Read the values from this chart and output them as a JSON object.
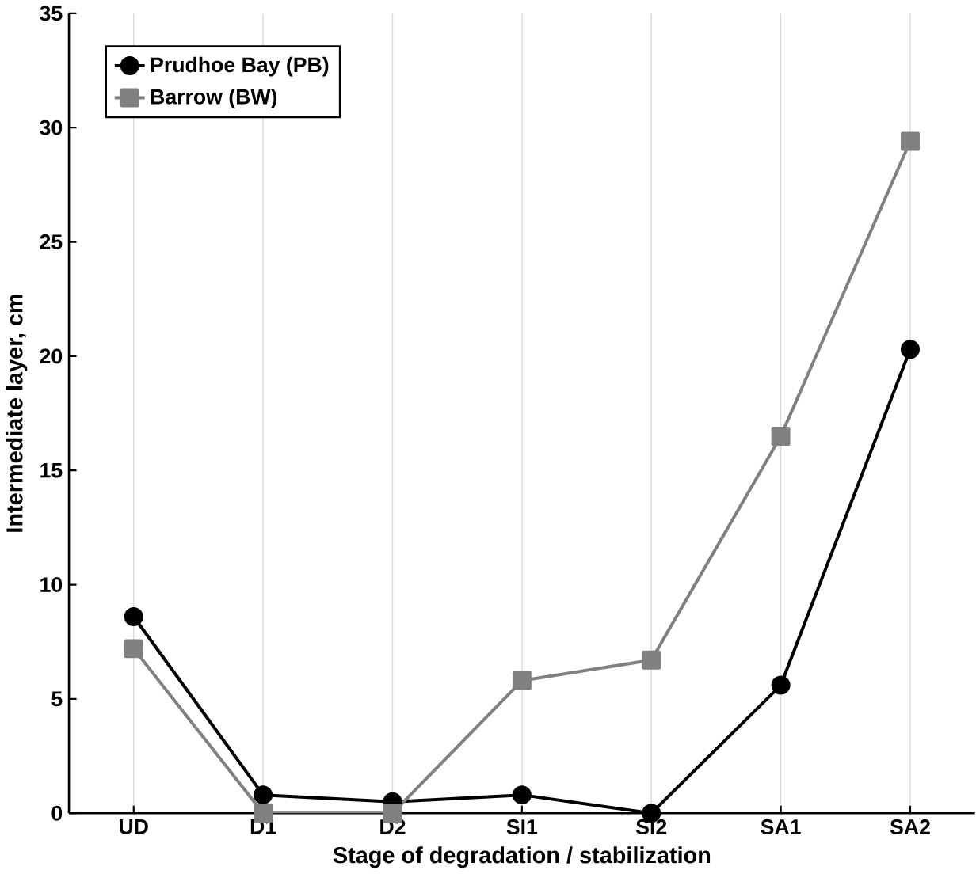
{
  "chart_data": {
    "type": "line",
    "xlabel": "Stage of degradation / stabilization",
    "ylabel": "Intermediate layer, cm",
    "categories": [
      "UD",
      "D1",
      "D2",
      "SI1",
      "SI2",
      "SA1",
      "SA2"
    ],
    "series": [
      {
        "name": "Prudhoe Bay (PB)",
        "color": "#000000",
        "marker": "circle",
        "values": [
          8.6,
          0.8,
          0.5,
          0.8,
          0,
          5.6,
          20.3
        ]
      },
      {
        "name": "Barrow (BW)",
        "color": "#808080",
        "marker": "square",
        "values": [
          7.2,
          0,
          0,
          5.8,
          6.7,
          16.5,
          29.4
        ]
      }
    ],
    "ylim": [
      0,
      35
    ],
    "yticks": [
      0,
      5,
      10,
      15,
      20,
      25,
      30,
      35
    ],
    "grid": "x",
    "legend": "top left",
    "line_style": "solid"
  }
}
